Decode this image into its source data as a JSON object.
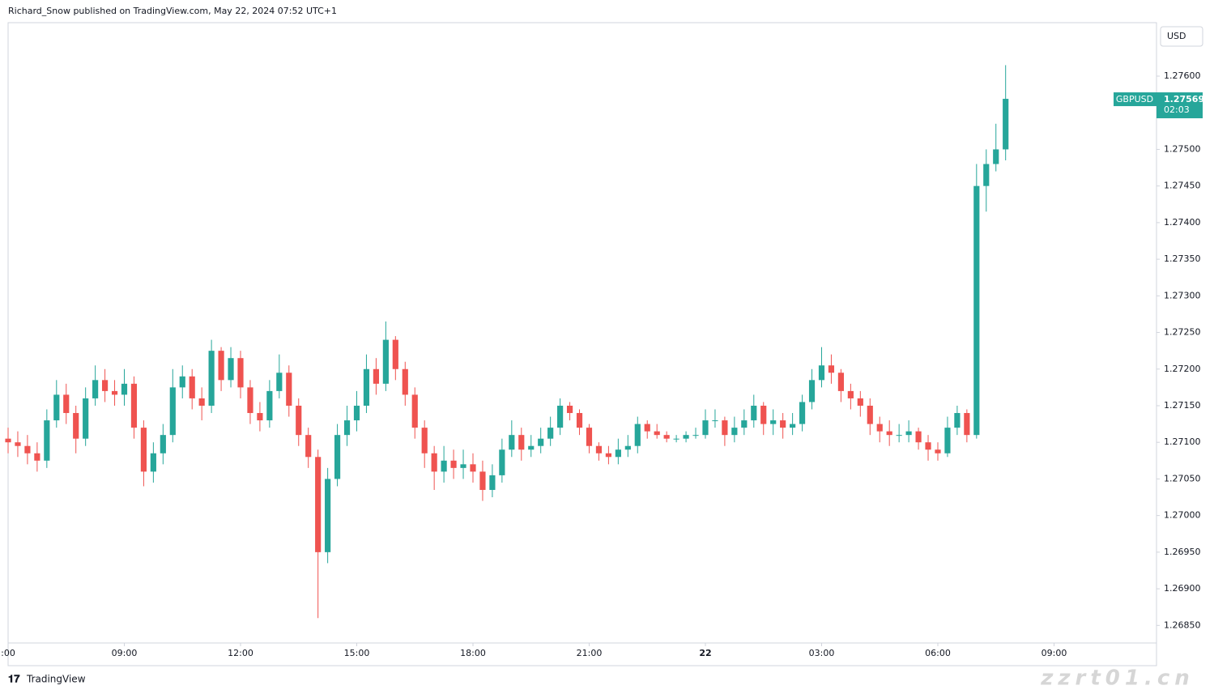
{
  "header": "Richard_Snow published on TradingView.com, May 22, 2024 07:52 UTC+1",
  "brand": "TradingView",
  "watermark": "zzrt01.cn",
  "chart_data": {
    "type": "candlestick",
    "currency": "USD",
    "countdown": "02:03",
    "grid": false,
    "up_color": "#26a69a",
    "down_color": "#ef5350",
    "xlim": [
      6,
      35.645
    ],
    "xticks": [
      {
        "value": 6,
        "label": ":00"
      },
      {
        "value": 9,
        "label": "09:00"
      },
      {
        "value": 12,
        "label": "12:00"
      },
      {
        "value": 15,
        "label": "15:00"
      },
      {
        "value": 18,
        "label": "18:00"
      },
      {
        "value": 21,
        "label": "21:00"
      },
      {
        "value": 24,
        "label": "22"
      },
      {
        "value": 27,
        "label": "03:00"
      },
      {
        "value": 30,
        "label": "06:00"
      },
      {
        "value": 33,
        "label": "09:00"
      }
    ],
    "ylim": [
      1.26826,
      1.27673
    ],
    "yticks": [
      {
        "value": 1.2685,
        "label": "1.26850"
      },
      {
        "value": 1.269,
        "label": "1.26900"
      },
      {
        "value": 1.2695,
        "label": "1.26950"
      },
      {
        "value": 1.27,
        "label": "1.27000"
      },
      {
        "value": 1.2705,
        "label": "1.27050"
      },
      {
        "value": 1.271,
        "label": "1.27100"
      },
      {
        "value": 1.2715,
        "label": "1.27150"
      },
      {
        "value": 1.272,
        "label": "1.27200"
      },
      {
        "value": 1.2725,
        "label": "1.27250"
      },
      {
        "value": 1.273,
        "label": "1.27300"
      },
      {
        "value": 1.2735,
        "label": "1.27350"
      },
      {
        "value": 1.274,
        "label": "1.27400"
      },
      {
        "value": 1.2745,
        "label": "1.27450"
      },
      {
        "value": 1.275,
        "label": "1.27500"
      },
      {
        "value": 1.2755,
        "label": "1.27550"
      },
      {
        "value": 1.276,
        "label": "1.27600"
      }
    ],
    "x": [
      6,
      6.25,
      6.5,
      6.75,
      7,
      7.25,
      7.5,
      7.75,
      8,
      8.25,
      8.5,
      8.75,
      9,
      9.25,
      9.5,
      9.75,
      10,
      10.25,
      10.5,
      10.75,
      11,
      11.25,
      11.5,
      11.75,
      12,
      12.25,
      12.5,
      12.75,
      13,
      13.25,
      13.5,
      13.75,
      14,
      14.25,
      14.5,
      14.75,
      15,
      15.25,
      15.5,
      15.75,
      16,
      16.25,
      16.5,
      16.75,
      17,
      17.25,
      17.5,
      17.75,
      18,
      18.25,
      18.5,
      18.75,
      19,
      19.25,
      19.5,
      19.75,
      20,
      20.25,
      20.5,
      20.75,
      21,
      21.25,
      21.5,
      21.75,
      22,
      22.25,
      22.5,
      22.75,
      23,
      23.25,
      23.5,
      23.75,
      24,
      24.25,
      24.5,
      24.75,
      25,
      25.25,
      25.5,
      25.75,
      26,
      26.25,
      26.5,
      26.75,
      27,
      27.25,
      27.5,
      27.75,
      28,
      28.25,
      28.5,
      28.75,
      29,
      29.25,
      29.5,
      29.75,
      30,
      30.25,
      30.5,
      30.75,
      31,
      31.25,
      31.5,
      31.75
    ],
    "series": [
      {
        "name": "GBPUSD",
        "open": [
          1.27105,
          1.271,
          1.27095,
          1.27085,
          1.27075,
          1.2713,
          1.27165,
          1.2714,
          1.27105,
          1.2716,
          1.27185,
          1.2717,
          1.27165,
          1.2718,
          1.2712,
          1.2706,
          1.27085,
          1.2711,
          1.27175,
          1.2719,
          1.2716,
          1.2715,
          1.27225,
          1.27185,
          1.27215,
          1.27175,
          1.2714,
          1.2713,
          1.2717,
          1.27195,
          1.2715,
          1.2711,
          1.2708,
          1.2695,
          1.2705,
          1.2711,
          1.2713,
          1.2715,
          1.272,
          1.2718,
          1.2724,
          1.272,
          1.27165,
          1.2712,
          1.27085,
          1.2706,
          1.27075,
          1.27065,
          1.2707,
          1.2706,
          1.27035,
          1.27055,
          1.2709,
          1.2711,
          1.2709,
          1.27095,
          1.27105,
          1.2712,
          1.2715,
          1.2714,
          1.2712,
          1.27095,
          1.27085,
          1.2708,
          1.2709,
          1.27095,
          1.27125,
          1.27115,
          1.2711,
          1.27105,
          1.27105,
          1.2711,
          1.2711,
          1.2713,
          1.2713,
          1.2711,
          1.2712,
          1.2713,
          1.2715,
          1.27125,
          1.2713,
          1.2712,
          1.27125,
          1.27155,
          1.27185,
          1.27205,
          1.27195,
          1.2717,
          1.2716,
          1.2715,
          1.27125,
          1.27115,
          1.2711,
          1.2711,
          1.27115,
          1.271,
          1.2709,
          1.27085,
          1.2712,
          1.2714,
          1.2711,
          1.2745,
          1.2748,
          1.275
        ],
        "high": [
          1.2712,
          1.27115,
          1.2711,
          1.271,
          1.27145,
          1.27185,
          1.2718,
          1.2715,
          1.27175,
          1.27205,
          1.272,
          1.27185,
          1.272,
          1.2719,
          1.2713,
          1.271,
          1.27125,
          1.272,
          1.27205,
          1.272,
          1.27175,
          1.2724,
          1.2723,
          1.2723,
          1.27225,
          1.27185,
          1.27155,
          1.27185,
          1.2722,
          1.27205,
          1.2716,
          1.2712,
          1.2709,
          1.27065,
          1.27125,
          1.2715,
          1.2717,
          1.2722,
          1.27215,
          1.27265,
          1.27245,
          1.2721,
          1.27175,
          1.2713,
          1.27095,
          1.27095,
          1.2709,
          1.2709,
          1.27085,
          1.27075,
          1.2707,
          1.27105,
          1.2713,
          1.2712,
          1.2711,
          1.2712,
          1.27135,
          1.2716,
          1.27155,
          1.27145,
          1.27125,
          1.271,
          1.27095,
          1.27105,
          1.2711,
          1.27135,
          1.2713,
          1.27125,
          1.27115,
          1.2711,
          1.27115,
          1.2712,
          1.27145,
          1.27145,
          1.27135,
          1.27135,
          1.27145,
          1.27165,
          1.27155,
          1.27145,
          1.2714,
          1.2714,
          1.27165,
          1.272,
          1.2723,
          1.2722,
          1.272,
          1.2718,
          1.2717,
          1.2716,
          1.27135,
          1.2713,
          1.27125,
          1.2713,
          1.2712,
          1.2711,
          1.271,
          1.27135,
          1.2715,
          1.27145,
          1.2748,
          1.275,
          1.27535,
          1.27615
        ],
        "low": [
          1.27085,
          1.2708,
          1.2707,
          1.2706,
          1.27065,
          1.2712,
          1.27125,
          1.27085,
          1.27095,
          1.2715,
          1.27155,
          1.2715,
          1.2715,
          1.27105,
          1.2704,
          1.27045,
          1.2707,
          1.271,
          1.2716,
          1.27145,
          1.2713,
          1.2714,
          1.2717,
          1.27175,
          1.2716,
          1.27125,
          1.27115,
          1.2712,
          1.2716,
          1.27135,
          1.27095,
          1.27065,
          1.2686,
          1.26935,
          1.2704,
          1.27095,
          1.27115,
          1.2714,
          1.27165,
          1.2717,
          1.27185,
          1.2715,
          1.27105,
          1.27065,
          1.27035,
          1.27045,
          1.2705,
          1.2705,
          1.27045,
          1.2702,
          1.27025,
          1.27045,
          1.2708,
          1.27075,
          1.2708,
          1.27085,
          1.27095,
          1.2711,
          1.2713,
          1.2711,
          1.27085,
          1.27075,
          1.2707,
          1.2707,
          1.2708,
          1.27085,
          1.27105,
          1.27105,
          1.271,
          1.271,
          1.271,
          1.27105,
          1.27105,
          1.2712,
          1.27095,
          1.271,
          1.2711,
          1.2712,
          1.2711,
          1.2711,
          1.27105,
          1.2711,
          1.27115,
          1.27145,
          1.27175,
          1.2718,
          1.27155,
          1.27145,
          1.27135,
          1.2711,
          1.271,
          1.27095,
          1.271,
          1.271,
          1.2709,
          1.27075,
          1.27075,
          1.2708,
          1.2711,
          1.271,
          1.27105,
          1.27415,
          1.2747,
          1.27485
        ],
        "close": [
          1.271,
          1.27095,
          1.27085,
          1.27075,
          1.2713,
          1.27165,
          1.2714,
          1.27105,
          1.2716,
          1.27185,
          1.2717,
          1.27165,
          1.2718,
          1.2712,
          1.2706,
          1.27085,
          1.2711,
          1.27175,
          1.2719,
          1.2716,
          1.2715,
          1.27225,
          1.27185,
          1.27215,
          1.27175,
          1.2714,
          1.2713,
          1.2717,
          1.27195,
          1.2715,
          1.2711,
          1.2708,
          1.2695,
          1.2705,
          1.2711,
          1.2713,
          1.2715,
          1.272,
          1.2718,
          1.2724,
          1.272,
          1.27165,
          1.2712,
          1.27085,
          1.2706,
          1.27075,
          1.27065,
          1.2707,
          1.2706,
          1.27035,
          1.27055,
          1.2709,
          1.2711,
          1.2709,
          1.27095,
          1.27105,
          1.2712,
          1.2715,
          1.2714,
          1.2712,
          1.27095,
          1.27085,
          1.2708,
          1.2709,
          1.27095,
          1.27125,
          1.27115,
          1.2711,
          1.27105,
          1.27105,
          1.2711,
          1.2711,
          1.2713,
          1.2713,
          1.2711,
          1.2712,
          1.2713,
          1.2715,
          1.27125,
          1.2713,
          1.2712,
          1.27125,
          1.27155,
          1.27185,
          1.27205,
          1.27195,
          1.2717,
          1.2716,
          1.2715,
          1.27125,
          1.27115,
          1.2711,
          1.2711,
          1.27115,
          1.271,
          1.2709,
          1.27085,
          1.2712,
          1.2714,
          1.2711,
          1.2745,
          1.2748,
          1.275,
          1.27569
        ]
      }
    ]
  }
}
